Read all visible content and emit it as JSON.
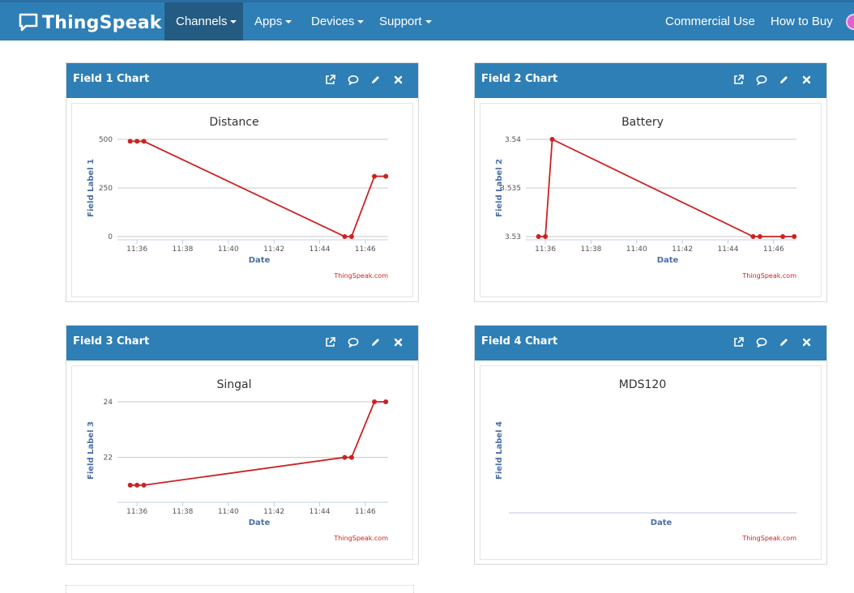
{
  "navbar": {
    "brand": "ThingSpeak",
    "brand_tm": "™",
    "items": [
      {
        "label": "Channels"
      },
      {
        "label": "Apps"
      },
      {
        "label": "Devices"
      },
      {
        "label": "Support"
      }
    ],
    "right_items": [
      {
        "label": "Commercial Use"
      },
      {
        "label": "How to Buy"
      }
    ],
    "colors": {
      "bar": "#2f7fb7",
      "active": "#245b82"
    }
  },
  "panels": [
    {
      "title": "Field 1 Chart"
    },
    {
      "title": "Field 2 Chart"
    },
    {
      "title": "Field 3 Chart"
    },
    {
      "title": "Field 4 Chart"
    }
  ],
  "tool_icons": [
    "external-link-icon",
    "comment-icon",
    "pencil-icon",
    "close-icon"
  ],
  "credit": "ThingSpeak.com",
  "chart_data": [
    {
      "type": "line",
      "title": "Distance",
      "xlabel": "Date",
      "ylabel": "Field Label 1",
      "x_ticks": [
        "11:36",
        "11:38",
        "11:40",
        "11:42",
        "11:44",
        "11:46"
      ],
      "y_ticks": [
        0,
        250,
        500
      ],
      "ylim": [
        0,
        500
      ],
      "x": [
        "11:35.7",
        "11:36.0",
        "11:36.3",
        "11:45.1",
        "11:45.4",
        "11:46.4",
        "11:46.9"
      ],
      "xnum": [
        35.7,
        36.0,
        36.3,
        45.1,
        45.4,
        46.4,
        46.9
      ],
      "values": [
        490,
        490,
        490,
        0,
        0,
        310,
        310
      ],
      "color": "#cc2222"
    },
    {
      "type": "line",
      "title": "Battery",
      "xlabel": "Date",
      "ylabel": "Field Label 2",
      "x_ticks": [
        "11:36",
        "11:38",
        "11:40",
        "11:42",
        "11:44",
        "11:46"
      ],
      "y_ticks": [
        3.53,
        3.535,
        3.54
      ],
      "ylim": [
        3.53,
        3.54
      ],
      "xnum": [
        35.7,
        36.0,
        36.3,
        45.1,
        45.4,
        46.4,
        46.9
      ],
      "values": [
        3.53,
        3.53,
        3.54,
        3.53,
        3.53,
        3.53,
        3.53
      ],
      "color": "#cc2222"
    },
    {
      "type": "line",
      "title": "Singal",
      "xlabel": "Date",
      "ylabel": "Field Label 3",
      "x_ticks": [
        "11:36",
        "11:38",
        "11:40",
        "11:42",
        "11:44",
        "11:46"
      ],
      "y_ticks": [
        22,
        24
      ],
      "ylim": [
        20.5,
        24
      ],
      "xnum": [
        35.7,
        36.0,
        36.3,
        45.1,
        45.4,
        46.4,
        46.9
      ],
      "values": [
        21,
        21,
        21,
        22,
        22,
        24,
        24
      ],
      "color": "#cc2222"
    },
    {
      "type": "line",
      "title": "MDS120",
      "xlabel": "Date",
      "ylabel": "Field Label 4",
      "x_ticks": [],
      "y_ticks": [],
      "values": [],
      "color": "#cc2222"
    }
  ]
}
